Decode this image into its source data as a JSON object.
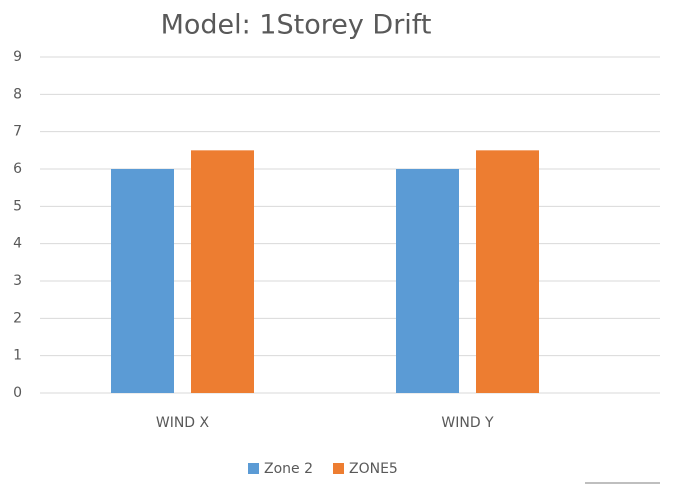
{
  "chart_data": {
    "type": "bar",
    "title": "Model: 1Storey Drift",
    "categories": [
      "WIND X",
      "WIND Y"
    ],
    "series": [
      {
        "name": "Zone 2",
        "color": "#5b9bd5",
        "values": [
          6,
          6
        ]
      },
      {
        "name": "ZONE5",
        "color": "#ed7d31",
        "values": [
          6.5,
          6.5
        ]
      }
    ],
    "ylim": [
      0,
      9
    ],
    "yticks": [
      0,
      1,
      2,
      3,
      4,
      5,
      6,
      7,
      8,
      9
    ],
    "grid": true,
    "legend": "bottom"
  }
}
